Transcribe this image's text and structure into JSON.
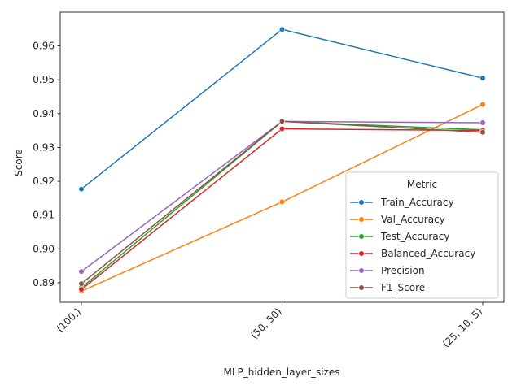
{
  "chart_data": {
    "type": "line",
    "xlabel": "MLP_hidden_layer_sizes",
    "ylabel": "Score",
    "categories": [
      "(100,)",
      "(50, 50)",
      "(25, 10, 5)"
    ],
    "ylim": [
      0.8842,
      0.97
    ],
    "yticks": [
      0.89,
      0.9,
      0.91,
      0.92,
      0.93,
      0.94,
      0.95,
      0.96
    ],
    "ytick_labels": [
      "0.89",
      "0.90",
      "0.91",
      "0.92",
      "0.93",
      "0.94",
      "0.95",
      "0.96"
    ],
    "grid": false,
    "legend": {
      "title": "Metric",
      "placement": "lower-right"
    },
    "series": [
      {
        "name": "Train_Accuracy",
        "color": "#1f77b4",
        "values": [
          0.9177,
          0.9649,
          0.9505
        ]
      },
      {
        "name": "Val_Accuracy",
        "color": "#ff7f0e",
        "values": [
          0.8875,
          0.9139,
          0.9427
        ]
      },
      {
        "name": "Test_Accuracy",
        "color": "#2ca02c",
        "values": [
          0.8885,
          0.9377,
          0.9352
        ]
      },
      {
        "name": "Balanced_Accuracy",
        "color": "#d62728",
        "values": [
          0.888,
          0.9355,
          0.935
        ]
      },
      {
        "name": "Precision",
        "color": "#9467bd",
        "values": [
          0.8933,
          0.9377,
          0.9373
        ]
      },
      {
        "name": "F1_Score",
        "color": "#8c564b",
        "values": [
          0.8897,
          0.9377,
          0.9345
        ]
      }
    ]
  }
}
